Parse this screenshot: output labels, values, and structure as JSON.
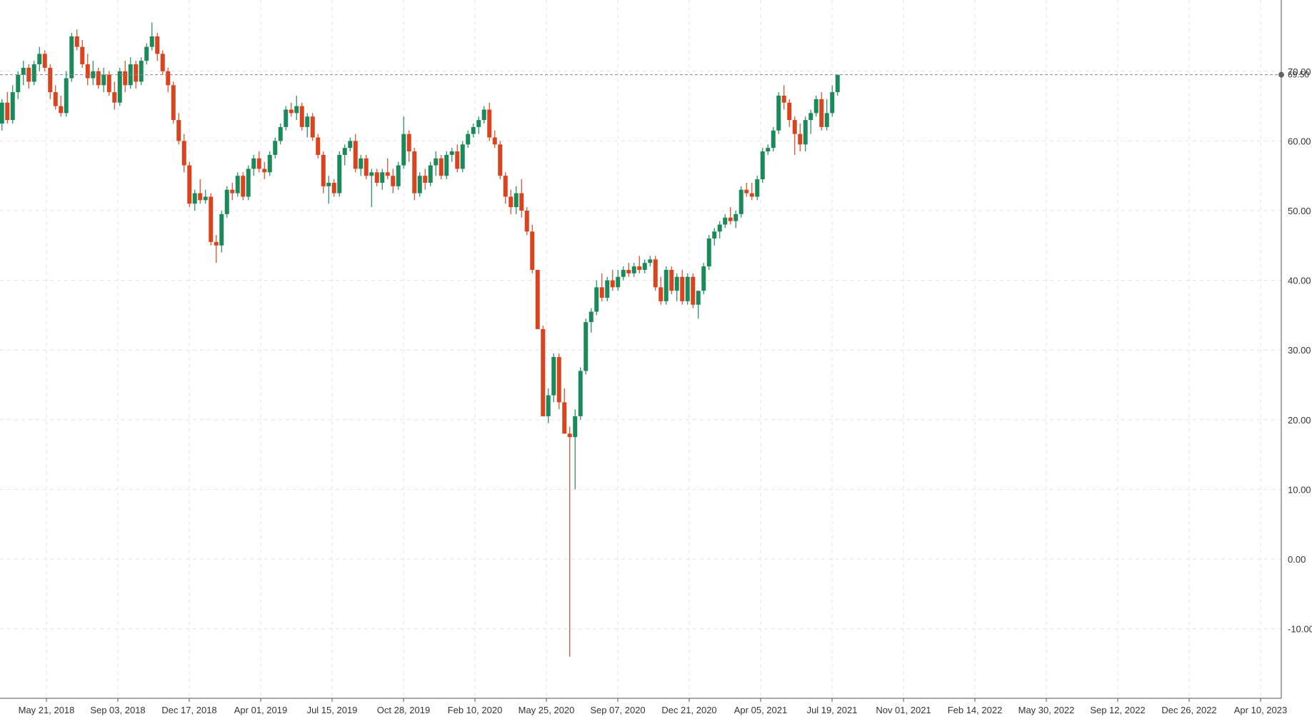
{
  "chart_data": {
    "type": "candlestick",
    "title": "",
    "xlabel": "",
    "ylabel": "",
    "ylim": [
      -20,
      80
    ],
    "y_ticks": [
      "70.00",
      "60.00",
      "50.00",
      "40.00",
      "30.00",
      "20.00",
      "10.00",
      "0.00",
      "-10.00"
    ],
    "y_tick_values": [
      70,
      60,
      50,
      40,
      30,
      20,
      10,
      0,
      -10
    ],
    "x_ticks": [
      "May 21, 2018",
      "Sep 03, 2018",
      "Dec 17, 2018",
      "Apr 01, 2019",
      "Jul 15, 2019",
      "Oct 28, 2019",
      "Feb 10, 2020",
      "May 25, 2020",
      "Sep 07, 2020",
      "Dec 21, 2020",
      "Apr 05, 2021",
      "Jul 19, 2021",
      "Nov 01, 2021",
      "Feb 14, 2022",
      "May 30, 2022",
      "Sep 12, 2022",
      "Dec 26, 2022",
      "Apr 10, 2023"
    ],
    "grid": true,
    "last_price": "69.50",
    "colors": {
      "up": "#1a8a5a",
      "down": "#d9431e",
      "grid": "#e3e3e3",
      "axis": "#555555"
    },
    "bars": [
      [
        2018.2,
        65.0,
        66.5,
        62.0,
        62.5
      ],
      [
        2018.22,
        62.5,
        66.0,
        61.5,
        65.5
      ],
      [
        2018.24,
        65.5,
        67.0,
        62.5,
        63.0
      ],
      [
        2018.26,
        63.0,
        68.0,
        62.5,
        67.0
      ],
      [
        2018.28,
        67.0,
        70.0,
        66.0,
        69.5
      ],
      [
        2018.3,
        69.5,
        71.5,
        68.0,
        70.5
      ],
      [
        2018.32,
        70.5,
        71.0,
        67.5,
        68.5
      ],
      [
        2018.34,
        68.5,
        71.5,
        68.0,
        71.0
      ],
      [
        2018.36,
        71.0,
        73.5,
        70.0,
        72.5
      ],
      [
        2018.38,
        72.5,
        73.0,
        70.0,
        70.5
      ],
      [
        2018.4,
        70.5,
        71.0,
        66.0,
        67.0
      ],
      [
        2018.42,
        67.0,
        68.0,
        64.5,
        65.0
      ],
      [
        2018.44,
        65.0,
        66.5,
        63.5,
        64.0
      ],
      [
        2018.46,
        64.0,
        70.0,
        63.5,
        69.0
      ],
      [
        2018.48,
        69.0,
        75.5,
        68.5,
        75.0
      ],
      [
        2018.5,
        75.0,
        76.0,
        73.0,
        73.5
      ],
      [
        2018.52,
        73.5,
        74.5,
        70.5,
        71.0
      ],
      [
        2018.54,
        71.0,
        72.5,
        68.0,
        69.0
      ],
      [
        2018.56,
        69.0,
        71.5,
        68.0,
        70.0
      ],
      [
        2018.58,
        70.0,
        70.5,
        67.5,
        68.0
      ],
      [
        2018.6,
        68.0,
        70.5,
        67.0,
        69.5
      ],
      [
        2018.62,
        69.5,
        70.0,
        66.5,
        67.0
      ],
      [
        2018.64,
        67.0,
        68.5,
        64.5,
        65.5
      ],
      [
        2018.66,
        65.5,
        70.5,
        65.0,
        70.0
      ],
      [
        2018.68,
        70.0,
        71.5,
        67.0,
        68.0
      ],
      [
        2018.7,
        68.0,
        72.0,
        67.5,
        71.0
      ],
      [
        2018.72,
        71.0,
        71.5,
        67.5,
        68.5
      ],
      [
        2018.74,
        68.5,
        72.0,
        68.0,
        71.5
      ],
      [
        2018.76,
        71.5,
        74.0,
        71.0,
        73.5
      ],
      [
        2018.78,
        73.5,
        77.0,
        73.0,
        75.0
      ],
      [
        2018.8,
        75.0,
        75.5,
        71.5,
        72.5
      ],
      [
        2018.82,
        72.5,
        73.0,
        69.5,
        70.0
      ],
      [
        2018.84,
        70.0,
        70.5,
        67.0,
        68.0
      ],
      [
        2018.86,
        68.0,
        68.5,
        62.5,
        63.0
      ],
      [
        2018.88,
        63.0,
        64.0,
        59.5,
        60.0
      ],
      [
        2018.9,
        60.0,
        61.0,
        55.5,
        56.5
      ],
      [
        2018.92,
        56.5,
        57.0,
        50.5,
        51.0
      ],
      [
        2018.94,
        51.0,
        53.0,
        50.0,
        52.5
      ],
      [
        2018.96,
        52.5,
        54.5,
        51.0,
        51.5
      ],
      [
        2018.98,
        51.5,
        53.0,
        51.0,
        52.0
      ],
      [
        2019.0,
        52.0,
        52.5,
        45.0,
        45.5
      ],
      [
        2019.02,
        45.5,
        46.5,
        42.5,
        45.0
      ],
      [
        2019.04,
        45.0,
        50.0,
        44.0,
        49.5
      ],
      [
        2019.06,
        49.5,
        53.5,
        49.0,
        53.0
      ],
      [
        2019.08,
        53.0,
        54.0,
        51.5,
        52.5
      ],
      [
        2019.1,
        52.5,
        55.5,
        52.0,
        55.0
      ],
      [
        2019.12,
        55.0,
        55.5,
        51.5,
        52.0
      ],
      [
        2019.14,
        52.0,
        56.5,
        51.5,
        56.0
      ],
      [
        2019.16,
        56.0,
        58.0,
        55.0,
        57.5
      ],
      [
        2019.18,
        57.5,
        58.5,
        55.5,
        56.0
      ],
      [
        2019.2,
        56.0,
        57.0,
        54.5,
        55.5
      ],
      [
        2019.22,
        55.5,
        58.5,
        55.0,
        58.0
      ],
      [
        2019.24,
        58.0,
        60.5,
        57.5,
        60.0
      ],
      [
        2019.26,
        60.0,
        62.5,
        59.5,
        62.0
      ],
      [
        2019.28,
        62.0,
        65.0,
        61.5,
        64.5
      ],
      [
        2019.3,
        64.5,
        65.5,
        63.5,
        64.0
      ],
      [
        2019.32,
        64.0,
        66.5,
        63.0,
        65.0
      ],
      [
        2019.34,
        65.0,
        65.5,
        61.5,
        62.0
      ],
      [
        2019.36,
        62.0,
        64.0,
        60.5,
        63.5
      ],
      [
        2019.38,
        63.5,
        64.0,
        60.0,
        60.5
      ],
      [
        2019.4,
        60.5,
        61.0,
        57.5,
        58.0
      ],
      [
        2019.42,
        58.0,
        58.5,
        52.5,
        53.5
      ],
      [
        2019.44,
        53.5,
        55.0,
        51.0,
        54.0
      ],
      [
        2019.46,
        54.0,
        54.5,
        52.0,
        52.5
      ],
      [
        2019.48,
        52.5,
        58.5,
        52.0,
        58.0
      ],
      [
        2019.5,
        58.0,
        59.5,
        56.5,
        59.0
      ],
      [
        2019.52,
        59.0,
        60.5,
        58.5,
        60.0
      ],
      [
        2019.54,
        60.0,
        61.0,
        55.5,
        56.0
      ],
      [
        2019.56,
        56.0,
        58.0,
        55.0,
        57.5
      ],
      [
        2019.58,
        57.5,
        58.0,
        54.5,
        55.0
      ],
      [
        2019.6,
        55.0,
        56.0,
        50.5,
        55.5
      ],
      [
        2019.62,
        55.5,
        56.0,
        53.5,
        54.0
      ],
      [
        2019.64,
        54.0,
        56.0,
        53.0,
        55.5
      ],
      [
        2019.66,
        55.5,
        57.5,
        54.5,
        55.0
      ],
      [
        2019.68,
        55.0,
        56.0,
        52.5,
        53.5
      ],
      [
        2019.7,
        53.5,
        57.0,
        53.0,
        56.5
      ],
      [
        2019.72,
        56.5,
        63.5,
        56.0,
        61.0
      ],
      [
        2019.74,
        61.0,
        61.5,
        57.0,
        58.5
      ],
      [
        2019.76,
        58.5,
        59.0,
        51.5,
        52.5
      ],
      [
        2019.78,
        52.5,
        55.5,
        52.0,
        55.0
      ],
      [
        2019.8,
        55.0,
        56.0,
        53.0,
        54.0
      ],
      [
        2019.82,
        54.0,
        57.0,
        53.5,
        56.5
      ],
      [
        2019.84,
        56.5,
        58.5,
        55.0,
        57.5
      ],
      [
        2019.86,
        57.5,
        58.0,
        54.5,
        55.0
      ],
      [
        2019.88,
        55.0,
        58.5,
        54.5,
        58.0
      ],
      [
        2019.9,
        58.0,
        59.0,
        57.0,
        58.5
      ],
      [
        2019.92,
        58.5,
        59.5,
        55.5,
        56.0
      ],
      [
        2019.94,
        56.0,
        60.0,
        55.5,
        59.5
      ],
      [
        2019.96,
        59.5,
        61.5,
        59.0,
        61.0
      ],
      [
        2019.98,
        61.0,
        62.5,
        60.5,
        62.0
      ],
      [
        2020.0,
        62.0,
        63.5,
        61.0,
        63.0
      ],
      [
        2020.02,
        63.0,
        65.0,
        62.5,
        64.5
      ],
      [
        2020.04,
        64.5,
        65.5,
        60.0,
        60.5
      ],
      [
        2020.06,
        60.5,
        61.5,
        59.0,
        59.5
      ],
      [
        2020.08,
        59.5,
        60.0,
        54.5,
        55.0
      ],
      [
        2020.1,
        55.0,
        55.5,
        51.0,
        52.0
      ],
      [
        2020.12,
        52.0,
        53.0,
        49.5,
        50.5
      ],
      [
        2020.14,
        50.5,
        53.5,
        49.5,
        52.5
      ],
      [
        2020.16,
        52.5,
        54.5,
        49.0,
        50.0
      ],
      [
        2020.18,
        50.0,
        50.5,
        46.5,
        47.0
      ],
      [
        2020.2,
        47.0,
        48.0,
        41.0,
        41.5
      ],
      [
        2020.22,
        41.5,
        36.5,
        33.0,
        33.0
      ],
      [
        2020.24,
        33.0,
        33.5,
        21.0,
        20.5
      ],
      [
        2020.26,
        20.5,
        24.5,
        19.5,
        23.5
      ],
      [
        2020.28,
        23.5,
        29.5,
        22.5,
        29.0
      ],
      [
        2020.3,
        29.0,
        29.5,
        21.5,
        22.5
      ],
      [
        2020.32,
        22.5,
        24.5,
        18.0,
        18.0
      ],
      [
        2020.34,
        18.0,
        19.0,
        -14.0,
        17.5
      ],
      [
        2020.36,
        17.5,
        21.5,
        10.0,
        20.5
      ],
      [
        2020.38,
        20.5,
        27.5,
        20.0,
        27.0
      ],
      [
        2020.4,
        27.0,
        34.5,
        26.5,
        34.0
      ],
      [
        2020.42,
        34.0,
        36.0,
        32.5,
        35.5
      ],
      [
        2020.44,
        35.5,
        40.0,
        35.0,
        39.0
      ],
      [
        2020.46,
        39.0,
        41.0,
        37.0,
        37.5
      ],
      [
        2020.48,
        37.5,
        40.5,
        37.0,
        40.0
      ],
      [
        2020.5,
        40.0,
        41.5,
        38.5,
        39.0
      ],
      [
        2020.52,
        39.0,
        41.5,
        38.5,
        40.5
      ],
      [
        2020.54,
        40.5,
        42.0,
        40.0,
        41.5
      ],
      [
        2020.56,
        41.5,
        42.5,
        40.5,
        41.0
      ],
      [
        2020.58,
        41.0,
        42.5,
        40.5,
        42.0
      ],
      [
        2020.6,
        42.0,
        43.5,
        41.0,
        41.5
      ],
      [
        2020.62,
        41.5,
        43.0,
        41.0,
        42.5
      ],
      [
        2020.64,
        42.5,
        43.5,
        42.0,
        43.0
      ],
      [
        2020.66,
        43.0,
        43.5,
        38.5,
        39.0
      ],
      [
        2020.68,
        39.0,
        40.5,
        36.5,
        37.0
      ],
      [
        2020.7,
        37.0,
        42.0,
        36.5,
        41.5
      ],
      [
        2020.72,
        41.5,
        42.0,
        38.0,
        38.5
      ],
      [
        2020.74,
        38.5,
        41.0,
        37.0,
        40.5
      ],
      [
        2020.76,
        40.5,
        41.5,
        36.5,
        37.0
      ],
      [
        2020.78,
        37.0,
        41.0,
        36.5,
        40.5
      ],
      [
        2020.8,
        40.5,
        41.0,
        36.0,
        36.5
      ],
      [
        2020.82,
        36.5,
        37.0,
        34.5,
        38.5
      ],
      [
        2020.84,
        38.5,
        42.5,
        38.0,
        42.0
      ],
      [
        2020.86,
        42.0,
        46.5,
        41.5,
        46.0
      ],
      [
        2020.88,
        46.0,
        47.5,
        45.0,
        47.0
      ],
      [
        2020.9,
        47.0,
        48.5,
        46.0,
        48.0
      ],
      [
        2020.92,
        48.0,
        49.5,
        47.5,
        49.0
      ],
      [
        2020.94,
        49.0,
        50.5,
        48.0,
        48.5
      ],
      [
        2020.96,
        48.5,
        50.0,
        47.5,
        49.5
      ],
      [
        2020.98,
        49.5,
        53.5,
        49.0,
        53.0
      ],
      [
        2021.0,
        53.0,
        54.0,
        52.0,
        52.5
      ],
      [
        2021.02,
        52.5,
        54.0,
        51.5,
        52.0
      ],
      [
        2021.04,
        52.0,
        55.0,
        51.5,
        54.5
      ],
      [
        2021.06,
        54.5,
        59.0,
        54.0,
        58.5
      ],
      [
        2021.08,
        58.5,
        59.5,
        58.0,
        59.0
      ],
      [
        2021.1,
        59.0,
        62.0,
        58.5,
        61.5
      ],
      [
        2021.12,
        61.5,
        67.0,
        61.0,
        66.5
      ],
      [
        2021.14,
        66.5,
        68.0,
        64.5,
        65.5
      ],
      [
        2021.16,
        65.5,
        66.0,
        62.0,
        63.0
      ],
      [
        2021.18,
        63.0,
        63.5,
        58.0,
        61.0
      ],
      [
        2021.2,
        61.0,
        62.5,
        58.5,
        59.5
      ],
      [
        2021.22,
        59.5,
        63.5,
        58.5,
        63.0
      ],
      [
        2021.24,
        63.0,
        64.5,
        61.0,
        64.0
      ],
      [
        2021.26,
        64.0,
        66.5,
        63.5,
        66.0
      ],
      [
        2021.28,
        66.0,
        67.0,
        61.5,
        62.0
      ],
      [
        2021.3,
        62.0,
        66.0,
        61.5,
        64.0
      ],
      [
        2021.32,
        64.0,
        68.0,
        63.5,
        67.0
      ],
      [
        2021.34,
        67.0,
        69.5,
        66.5,
        69.5
      ]
    ]
  }
}
